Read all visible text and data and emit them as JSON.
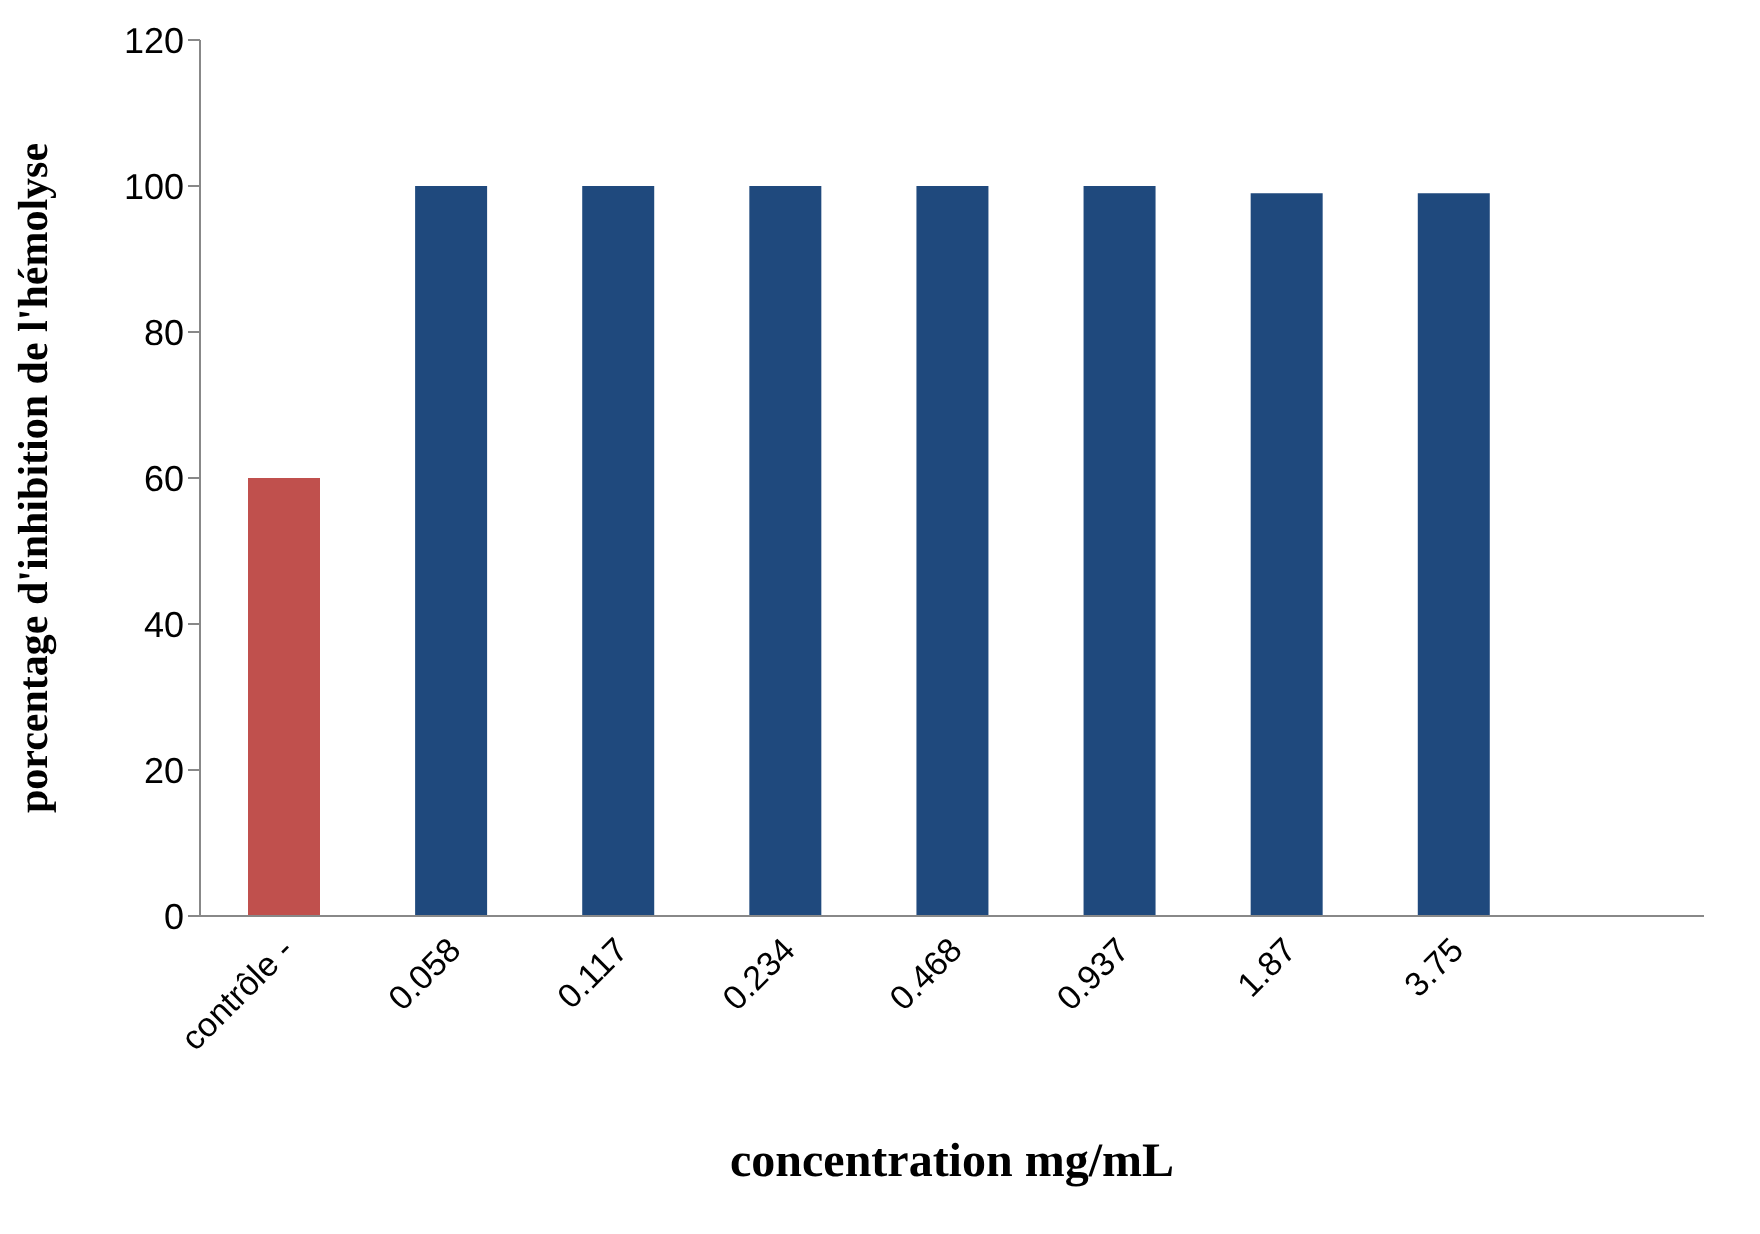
{
  "chart_data": {
    "type": "bar",
    "xlabel": "concentration mg/mL",
    "ylabel": "porcentage d'inhibition de l'hémolyse",
    "categories": [
      "contrôle -",
      "0.058",
      "0.117",
      "0.234",
      "0.468",
      "0.937",
      "1.87",
      "3.75",
      null
    ],
    "values": [
      60,
      100,
      100,
      100,
      100,
      100,
      99,
      99,
      null
    ],
    "colors": [
      "#c0504d",
      "#1f497d",
      "#1f497d",
      "#1f497d",
      "#1f497d",
      "#1f497d",
      "#1f497d",
      "#1f497d",
      "#1f497d"
    ],
    "ylim": [
      0,
      120
    ],
    "yticks": [
      0,
      20,
      40,
      60,
      80,
      100,
      120
    ],
    "grid": false,
    "legend": false
  }
}
